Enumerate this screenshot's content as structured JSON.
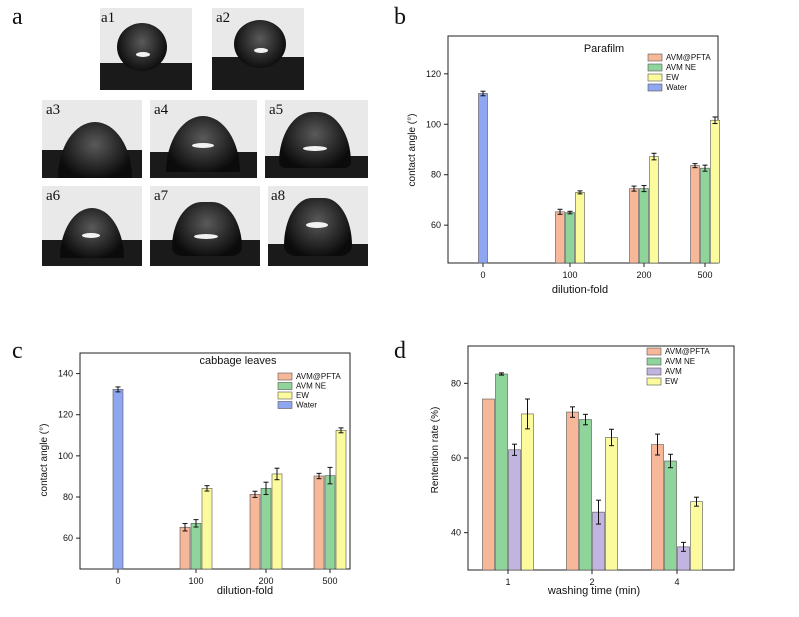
{
  "panels": {
    "a": "a",
    "b": "b",
    "c": "c",
    "d": "d"
  },
  "photos": [
    {
      "label": "a1"
    },
    {
      "label": "a2"
    },
    {
      "label": "a3"
    },
    {
      "label": "a4"
    },
    {
      "label": "a5"
    },
    {
      "label": "a6"
    },
    {
      "label": "a7"
    },
    {
      "label": "a8"
    }
  ],
  "chart_data": [
    {
      "type": "bar",
      "title": "Parafilm",
      "xlabel": "dilution-fold",
      "ylabel": "contact angle (°)",
      "categories": [
        "0",
        "100",
        "200",
        "500"
      ],
      "ylim": [
        45,
        135
      ],
      "yticks": [
        60,
        80,
        100,
        120
      ],
      "legend_position": "top-right",
      "series": [
        {
          "name": "AVM@PFTA",
          "color": "#f7b89a",
          "values": [
            null,
            65.3,
            74.5,
            83.6
          ],
          "errors": [
            null,
            1.0,
            1.0,
            0.8
          ]
        },
        {
          "name": "AVM NE",
          "color": "#8fd49a",
          "values": [
            null,
            65.0,
            74.5,
            82.6
          ],
          "errors": [
            null,
            0.5,
            1.2,
            1.2
          ]
        },
        {
          "name": "EW",
          "color": "#fbfb9d",
          "values": [
            null,
            73.0,
            87.2,
            101.6
          ],
          "errors": [
            null,
            0.6,
            1.3,
            1.3
          ]
        },
        {
          "name": "Water",
          "color": "#8fa6f0",
          "values": [
            112.2,
            null,
            null,
            null
          ],
          "errors": [
            0.9,
            null,
            null,
            null
          ]
        }
      ]
    },
    {
      "type": "bar",
      "title": "cabbage leaves",
      "xlabel": "dilution-fold",
      "ylabel": "contact angle (°)",
      "categories": [
        "0",
        "100",
        "200",
        "500"
      ],
      "ylim": [
        45,
        150
      ],
      "yticks": [
        60,
        80,
        100,
        120,
        140
      ],
      "legend_position": "top-right",
      "series": [
        {
          "name": "AVM@PFTA",
          "color": "#f7b89a",
          "values": [
            null,
            65.3,
            81.3,
            90.2
          ],
          "errors": [
            null,
            1.8,
            1.5,
            1.3
          ]
        },
        {
          "name": "AVM NE",
          "color": "#8fd49a",
          "values": [
            null,
            67.2,
            84.2,
            90.4
          ],
          "errors": [
            null,
            1.8,
            3.0,
            4.0
          ]
        },
        {
          "name": "EW",
          "color": "#fbfb9d",
          "values": [
            null,
            84.2,
            91.2,
            112.4
          ],
          "errors": [
            null,
            1.3,
            2.8,
            1.2
          ]
        },
        {
          "name": "Water",
          "color": "#8fa6f0",
          "values": [
            132.3,
            null,
            null,
            null
          ],
          "errors": [
            1.2,
            null,
            null,
            null
          ]
        }
      ]
    },
    {
      "type": "bar",
      "title": "",
      "xlabel": "washing time (min)",
      "ylabel": "Rentention rate (%)",
      "categories": [
        "1",
        "2",
        "4"
      ],
      "ylim": [
        30,
        90
      ],
      "yticks": [
        40,
        60,
        80
      ],
      "legend_position": "top-right",
      "series": [
        {
          "name": "AVM@PFTA",
          "color": "#f7b89a",
          "values": [
            75.8,
            72.3,
            63.6
          ],
          "errors": [
            0,
            1.4,
            2.8
          ]
        },
        {
          "name": "AVM NE",
          "color": "#8fd49a",
          "values": [
            82.5,
            70.3,
            59.2
          ],
          "errors": [
            0.3,
            1.4,
            1.8
          ]
        },
        {
          "name": "AVM",
          "color": "#c1b4e0",
          "values": [
            62.2,
            45.5,
            36.2
          ],
          "errors": [
            1.5,
            3.2,
            1.2
          ]
        },
        {
          "name": "EW",
          "color": "#fbfb9d",
          "values": [
            71.8,
            65.5,
            48.3
          ],
          "errors": [
            4.0,
            2.2,
            1.2
          ]
        }
      ]
    }
  ]
}
